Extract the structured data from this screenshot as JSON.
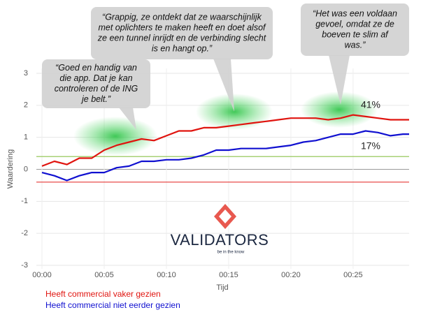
{
  "chart_data": {
    "type": "line",
    "x_label": "Tijd",
    "y_label": "Waardering",
    "x": [
      0,
      1,
      2,
      3,
      4,
      5,
      6,
      7,
      8,
      9,
      10,
      11,
      12,
      13,
      14,
      15,
      16,
      17,
      18,
      19,
      20,
      21,
      22,
      23,
      24,
      25,
      26,
      27,
      28,
      29,
      29.5
    ],
    "series": [
      {
        "name": "Heeft commercial vaker gezien",
        "color": "#e0140f",
        "values": [
          0.1,
          0.25,
          0.15,
          0.35,
          0.35,
          0.6,
          0.75,
          0.85,
          0.95,
          0.9,
          1.05,
          1.2,
          1.2,
          1.3,
          1.3,
          1.35,
          1.4,
          1.45,
          1.5,
          1.55,
          1.6,
          1.6,
          1.6,
          1.55,
          1.6,
          1.7,
          1.65,
          1.6,
          1.55,
          1.55,
          1.55
        ]
      },
      {
        "name": "Heeft commercial niet eerder gezien",
        "color": "#1010d0",
        "values": [
          -0.1,
          -0.2,
          -0.35,
          -0.2,
          -0.1,
          -0.1,
          0.05,
          0.1,
          0.25,
          0.25,
          0.3,
          0.3,
          0.35,
          0.45,
          0.6,
          0.6,
          0.65,
          0.65,
          0.65,
          0.7,
          0.75,
          0.85,
          0.9,
          1.0,
          1.1,
          1.1,
          1.2,
          1.15,
          1.05,
          1.1,
          1.1
        ]
      }
    ],
    "end_labels": [
      "41%",
      "17%"
    ],
    "reference_lines": [
      {
        "value": 0.4,
        "color": "#8bc34a"
      },
      {
        "value": -0.4,
        "color": "#e53935"
      }
    ],
    "xlim": [
      0,
      29.5
    ],
    "ylim": [
      -3,
      3
    ],
    "xticks": [
      {
        "value": 0,
        "label": "00:00"
      },
      {
        "value": 5,
        "label": "00:05"
      },
      {
        "value": 10,
        "label": "00:10"
      },
      {
        "value": 15,
        "label": "00:15"
      },
      {
        "value": 20,
        "label": "00:20"
      },
      {
        "value": 25,
        "label": "00:25"
      }
    ],
    "yticks": [
      -3,
      -2,
      -1,
      0,
      1,
      2,
      3
    ],
    "grid": true,
    "annotations": [
      {
        "lines": [
          "“Goed en handig van",
          "die app. Dat je kan",
          "controleren of de ING",
          "je belt.”"
        ]
      },
      {
        "lines": [
          "“Grappig, ze ontdekt dat ze waarschijnlijk",
          "met oplichters te maken heeft en doet alsof",
          "ze een tunnel inrijdt en de verbinding slecht",
          "is en hangt op.”"
        ]
      },
      {
        "lines": [
          "“Het was een voldaan",
          "gevoel, omdat ze de",
          "boeven te slim af",
          "was.”"
        ]
      }
    ],
    "logo": {
      "name": "VALIDATORS",
      "tagline": "be in the know"
    }
  }
}
